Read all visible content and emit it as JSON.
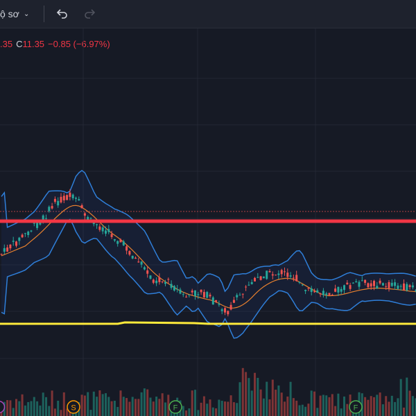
{
  "toolbar": {
    "title_fragment": "ộ sơ",
    "undo_icon": "undo-arrow-icon",
    "redo_icon": "redo-arrow-icon"
  },
  "legend": {
    "prev_value_fragment": ".35",
    "close_label": "C",
    "close_value": "11.35",
    "change": "−0.85 (−6.97%)"
  },
  "event_markers": [
    {
      "letter": "S",
      "color": "#ff9800"
    },
    {
      "letter": "F",
      "color": "#4caf50"
    },
    {
      "letter": "F",
      "color": "#4caf50"
    }
  ],
  "colors": {
    "background": "#161a25",
    "up": "#26a69a",
    "down": "#ef5350",
    "bollinger_band": "#2962ff",
    "moving_average": "#ff9800",
    "resistance_line": "#f23645",
    "support_line": "#ffeb3b"
  },
  "chart_data": {
    "type": "candlestick",
    "overlays": [
      "bollinger-bands",
      "moving-average",
      "horizontal-line",
      "horizontal-line",
      "volume"
    ],
    "grid": true
  }
}
